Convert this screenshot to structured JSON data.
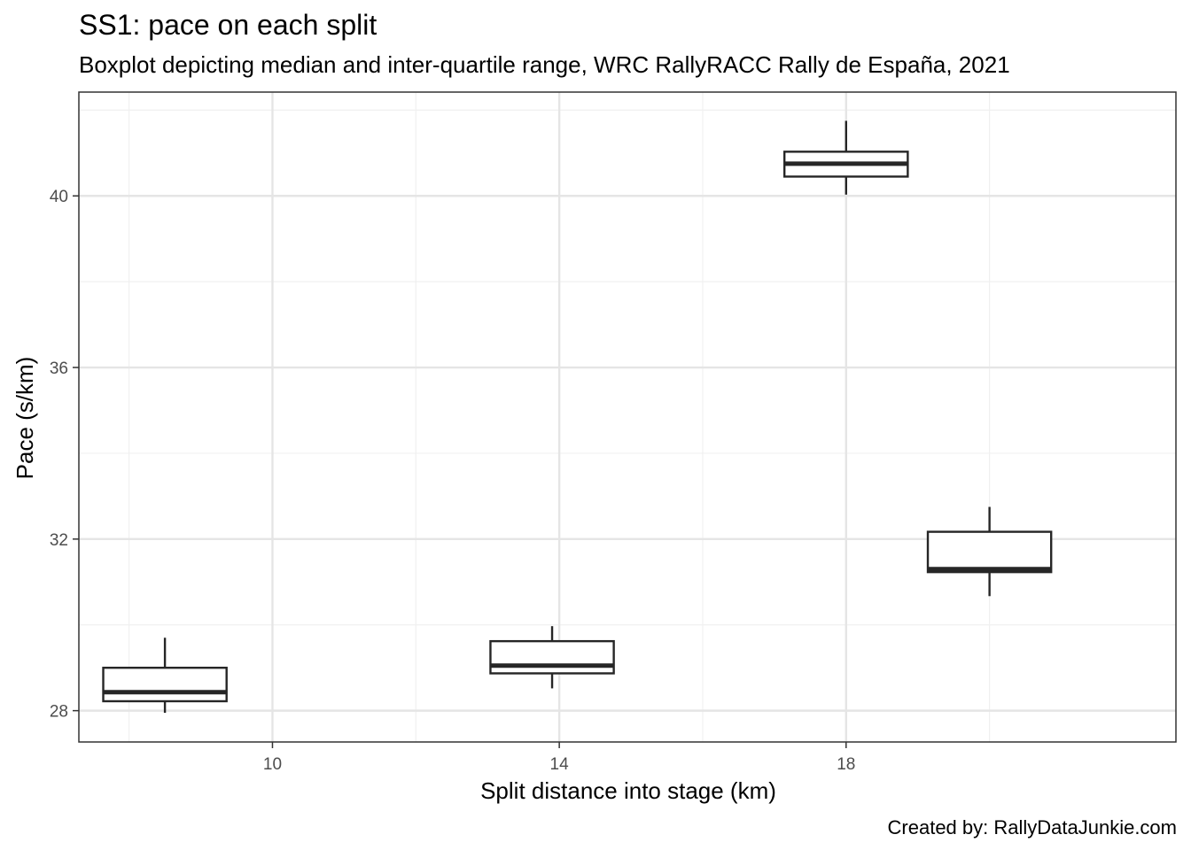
{
  "chart_data": {
    "type": "boxplot",
    "title": "SS1: pace on each split",
    "subtitle": "Boxplot depicting median and inter-quartile range, WRC RallyRACC Rally de España, 2021",
    "caption": "Created by: RallyDataJunkie.com",
    "xlabel": "Split distance into stage (km)",
    "ylabel": "Pace (s/km)",
    "x_ticks": [
      10,
      14,
      18
    ],
    "y_ticks": [
      28,
      32,
      36,
      40
    ],
    "xlim": [
      7.3,
      22.6
    ],
    "ylim": [
      27.27,
      42.42
    ],
    "grid": true,
    "box_width_km": 1.72,
    "colors": {
      "panel_border": "#333333",
      "grid_major": "#e5e5e5",
      "grid_minor": "#f0f0f0",
      "box_line": "#262626",
      "box_fill": "#ffffff",
      "tick_text": "#4d4d4d"
    },
    "boxes": [
      {
        "x": 8.5,
        "min": 27.95,
        "q1": 28.22,
        "median": 28.43,
        "q3": 29.0,
        "max": 29.7
      },
      {
        "x": 13.9,
        "min": 28.52,
        "q1": 28.87,
        "median": 29.05,
        "q3": 29.62,
        "max": 29.97
      },
      {
        "x": 18.0,
        "min": 40.03,
        "q1": 40.45,
        "median": 40.75,
        "q3": 41.03,
        "max": 41.75
      },
      {
        "x": 20.0,
        "min": 30.67,
        "q1": 31.23,
        "median": 31.3,
        "q3": 32.17,
        "max": 32.75
      }
    ]
  }
}
